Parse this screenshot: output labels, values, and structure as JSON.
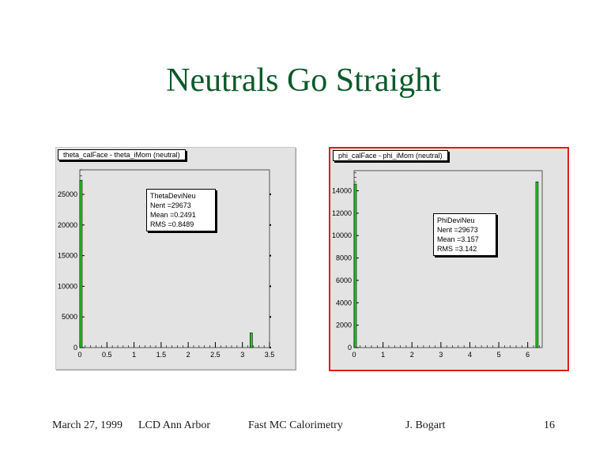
{
  "slide": {
    "title": "Neutrals Go Straight",
    "footer": {
      "date": "March 27, 1999",
      "venue": "LCD Ann Arbor",
      "topic": "Fast MC Calorimetry",
      "author": "J. Bogart",
      "page": "16"
    }
  },
  "colors": {
    "title": "#0b5a2a",
    "bar_fill": "#22cc22",
    "selected_border": "#e01c1c",
    "canvas_bg": "#e3e3e3"
  },
  "chart_data": [
    {
      "type": "bar",
      "title": "theta_calFace - theta_iMom (neutral)",
      "xlim": [
        0,
        3.5
      ],
      "ylim": [
        0,
        29000
      ],
      "xticks": [
        0,
        0.5,
        1,
        1.5,
        2,
        2.5,
        3,
        3.5
      ],
      "xtick_labels": [
        "0",
        "0.5",
        "1",
        "1.5",
        "2",
        "2.5",
        "3",
        "3.5"
      ],
      "yticks": [
        0,
        5000,
        10000,
        15000,
        20000,
        25000
      ],
      "ytick_labels": [
        "0",
        "5000",
        "10000",
        "15000",
        "20000",
        "25000"
      ],
      "bars": [
        {
          "x": 0.0,
          "value": 27300
        },
        {
          "x": 3.14,
          "value": 2400
        }
      ],
      "stats": {
        "name": "ThetaDeviNeu",
        "rows": [
          {
            "label": "Nent = ",
            "value": "29673"
          },
          {
            "label": "Mean  = ",
            "value": "0.2491"
          },
          {
            "label": "RMS   = ",
            "value": "0.8489"
          }
        ]
      }
    },
    {
      "type": "bar",
      "title": "phi_calFace - phi_iMom (neutral)",
      "xlim": [
        0,
        6.5
      ],
      "ylim": [
        0,
        15800
      ],
      "xticks": [
        0,
        1,
        2,
        3,
        4,
        5,
        6
      ],
      "xtick_labels": [
        "0",
        "1",
        "2",
        "3",
        "4",
        "5",
        "6"
      ],
      "yticks": [
        0,
        2000,
        4000,
        6000,
        8000,
        10000,
        12000,
        14000
      ],
      "ytick_labels": [
        "0",
        "2000",
        "4000",
        "6000",
        "8000",
        "10000",
        "12000",
        "14000"
      ],
      "bars": [
        {
          "x": 0.0,
          "value": 14600
        },
        {
          "x": 6.28,
          "value": 14800
        }
      ],
      "stats": {
        "name": "PhiDeviNeu",
        "rows": [
          {
            "label": "Nent = ",
            "value": "29673"
          },
          {
            "label": "Mean  = ",
            "value": "3.157"
          },
          {
            "label": "RMS   = ",
            "value": "3.142"
          }
        ]
      }
    }
  ]
}
